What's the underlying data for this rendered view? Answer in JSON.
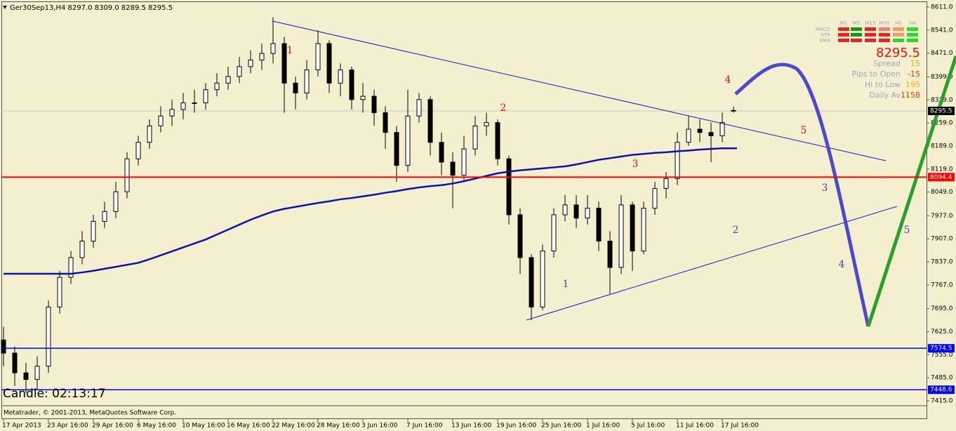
{
  "header": {
    "title": "Ger30Sep13,H4  8297.0 8309.0 8289.5 8295.5"
  },
  "chart_data": {
    "type": "candlestick",
    "categories": [
      "17 Apr 2013",
      null,
      null,
      null,
      "23 Apr 16:00",
      null,
      null,
      null,
      "29 Apr 16:00",
      null,
      null,
      null,
      "6 May 16:00",
      null,
      null,
      null,
      "10 May 16:00",
      null,
      null,
      null,
      "16 May 16:00",
      null,
      null,
      null,
      "22 May 16:00",
      null,
      null,
      null,
      "28 May 16:00",
      null,
      null,
      null,
      "3 Jun 16:00",
      null,
      null,
      null,
      "7 Jun 16:00",
      null,
      null,
      null,
      "13 Jun 16:00",
      null,
      null,
      null,
      "19 Jun 16:00",
      null,
      null,
      null,
      "25 Jun 16:00",
      null,
      null,
      null,
      "1 Jul 16:00",
      null,
      null,
      null,
      "5 Jul 16:00",
      null,
      null,
      null,
      "11 Jul 16:00",
      null,
      null,
      null,
      "17 Jul 16:00",
      null
    ],
    "open": [
      7600,
      7560,
      7500,
      7480,
      7520,
      7700,
      7790,
      7850,
      7900,
      7960,
      7990,
      8050,
      8150,
      8200,
      8250,
      8280,
      8300,
      8320,
      8320,
      8360,
      8380,
      8400,
      8430,
      8450,
      8470,
      8500,
      8380,
      8350,
      8420,
      8500,
      8380,
      8420,
      8330,
      8340,
      8290,
      8230,
      8130,
      8280,
      8330,
      8200,
      8140,
      8100,
      8180,
      8250,
      8260,
      8150,
      7980,
      7850,
      7700,
      7870,
      7980,
      8010,
      7970,
      8000,
      7900,
      7820,
      8010,
      7870,
      8000,
      8060,
      8090,
      8200,
      8240,
      8230,
      8220,
      8297
    ],
    "high": [
      7640,
      7580,
      7530,
      7550,
      7720,
      7810,
      7870,
      7930,
      7980,
      8020,
      8080,
      8170,
      8220,
      8270,
      8310,
      8330,
      8350,
      8360,
      8380,
      8410,
      8430,
      8460,
      8480,
      8500,
      8580,
      8520,
      8400,
      8450,
      8540,
      8510,
      8440,
      8430,
      8380,
      8360,
      8310,
      8250,
      8360,
      8350,
      8340,
      8230,
      8170,
      8220,
      8280,
      8290,
      8270,
      8160,
      8000,
      7860,
      7890,
      8000,
      8040,
      8040,
      8040,
      8020,
      7930,
      8040,
      8020,
      8020,
      8080,
      8110,
      8230,
      8280,
      8270,
      8260,
      8290,
      8309
    ],
    "low": [
      7520,
      7460,
      7440,
      7450,
      7500,
      7680,
      7770,
      7830,
      7880,
      7940,
      7970,
      8030,
      8130,
      8180,
      8230,
      8250,
      8270,
      8290,
      8300,
      8340,
      8360,
      8380,
      8410,
      8420,
      8440,
      8290,
      8300,
      8330,
      8400,
      8350,
      8340,
      8300,
      8290,
      8250,
      8180,
      8080,
      8110,
      8260,
      8160,
      8100,
      8000,
      8080,
      8160,
      8220,
      8130,
      7950,
      7800,
      7660,
      7690,
      7850,
      7960,
      7940,
      7950,
      7870,
      7740,
      7800,
      7810,
      7860,
      7980,
      8030,
      8070,
      8190,
      8200,
      8140,
      8200,
      8289.5
    ],
    "close": [
      7560,
      7500,
      7480,
      7520,
      7700,
      7790,
      7850,
      7900,
      7960,
      7990,
      8050,
      8150,
      8200,
      8250,
      8280,
      8300,
      8320,
      8320,
      8360,
      8380,
      8400,
      8430,
      8450,
      8470,
      8500,
      8380,
      8350,
      8420,
      8500,
      8380,
      8420,
      8330,
      8340,
      8290,
      8230,
      8130,
      8280,
      8330,
      8200,
      8140,
      8100,
      8180,
      8250,
      8260,
      8150,
      7980,
      7850,
      7700,
      7870,
      7980,
      8010,
      7970,
      8000,
      7900,
      7820,
      8010,
      7870,
      8000,
      8060,
      8090,
      8200,
      8240,
      8230,
      8220,
      8260,
      8295.5
    ],
    "up_color": "#ffffff",
    "down_color": "#000000",
    "moving_average": {
      "color": "#0c14a8",
      "values": [
        7801,
        7801,
        7801,
        7801,
        7801,
        7801,
        7801,
        7805,
        7810,
        7816,
        7822,
        7828,
        7834,
        7845,
        7857,
        7869,
        7881,
        7893,
        7905,
        7920,
        7935,
        7950,
        7965,
        7978,
        7990,
        7998,
        8004,
        8010,
        8016,
        8021,
        8027,
        8031,
        8036,
        8041,
        8047,
        8052,
        8058,
        8063,
        8067,
        8070,
        8075,
        8082,
        8090,
        8098,
        8106,
        8111,
        8115,
        8118,
        8121,
        8124,
        8127,
        8133,
        8140,
        8147,
        8152,
        8157,
        8162,
        8165,
        8168,
        8170,
        8173,
        8175,
        8178,
        8180,
        8182,
        8182
      ]
    },
    "hlines": [
      {
        "value": 8094.4,
        "color": "#ff0000"
      },
      {
        "value": 7574.5,
        "color": "#0000ff"
      },
      {
        "value": 7448.6,
        "color": "#0000ff"
      }
    ],
    "ylim": [
      7415,
      8611
    ],
    "yticks": [
      {
        "value": 8611,
        "label": "8611.0"
      },
      {
        "value": 8541,
        "label": "8541.0"
      },
      {
        "value": 8471,
        "label": "8471.0"
      },
      {
        "value": 8399,
        "label": "8399.0"
      },
      {
        "value": 8329,
        "label": "8329.0"
      },
      {
        "value": 8259,
        "label": "8259.0"
      },
      {
        "value": 8189,
        "label": "8189.0"
      },
      {
        "value": 8119,
        "label": "8119.0"
      },
      {
        "value": 8049,
        "label": "8049.0"
      },
      {
        "value": 7977,
        "label": "7977.0"
      },
      {
        "value": 7907,
        "label": "7907.0"
      },
      {
        "value": 7837,
        "label": "7837.0"
      },
      {
        "value": 7767,
        "label": "7767.0"
      },
      {
        "value": 7695,
        "label": "7695.0"
      },
      {
        "value": 7625,
        "label": "7625.0"
      },
      {
        "value": 7555,
        "label": "7555.0"
      },
      {
        "value": 7485,
        "label": "7485.0"
      },
      {
        "value": 7415,
        "label": "7415.0"
      }
    ],
    "wave_labels": [
      {
        "text": "1",
        "color": "#dd1111"
      },
      {
        "text": "2",
        "color": "#dd1111"
      },
      {
        "text": "3",
        "color": "#dd1111"
      },
      {
        "text": "4",
        "color": "#dd1111"
      },
      {
        "text": "5",
        "color": "#dd1111"
      },
      {
        "text": "1",
        "color": "#4444bb"
      },
      {
        "text": "2",
        "color": "#4444bb"
      },
      {
        "text": "3",
        "color": "#4444bb"
      },
      {
        "text": "4",
        "color": "#4444bb"
      },
      {
        "text": "5",
        "color": "#4444bb"
      }
    ]
  },
  "panel": {
    "timeframes": [
      "M1",
      "M5",
      "M15",
      "M30",
      "H1",
      "H4"
    ],
    "indicators": [
      {
        "name": "MACD",
        "colors": [
          "#ee2222",
          "#119911",
          "#ee2222",
          "#ff7777",
          "#ff9966",
          "#22dd22"
        ]
      },
      {
        "name": "STR",
        "colors": [
          "#ee2222",
          "#119911",
          "#ee2222",
          "#ee2222",
          "#ff9966",
          "#22dd22"
        ]
      },
      {
        "name": "EMA",
        "colors": [
          "#ee2222",
          "#ee2222",
          "#ee2222",
          "#ee2222",
          "#22dd22",
          "#22dd22"
        ]
      }
    ],
    "stats": [
      {
        "label": "Spread",
        "value": 15,
        "color": "#e8b800"
      },
      {
        "label": "Pips to Open",
        "value": -15,
        "color": "#ff3300"
      },
      {
        "label": "Hi to Low",
        "value": 195,
        "color": "#e8b800"
      },
      {
        "label": "Daily Av",
        "value": 1158,
        "color": "#ff3300"
      }
    ]
  },
  "candle_timer": "Candle:  02:13:17",
  "copyright": "Metatrader, © 2001-2013, MetaQuotes Software Corp."
}
